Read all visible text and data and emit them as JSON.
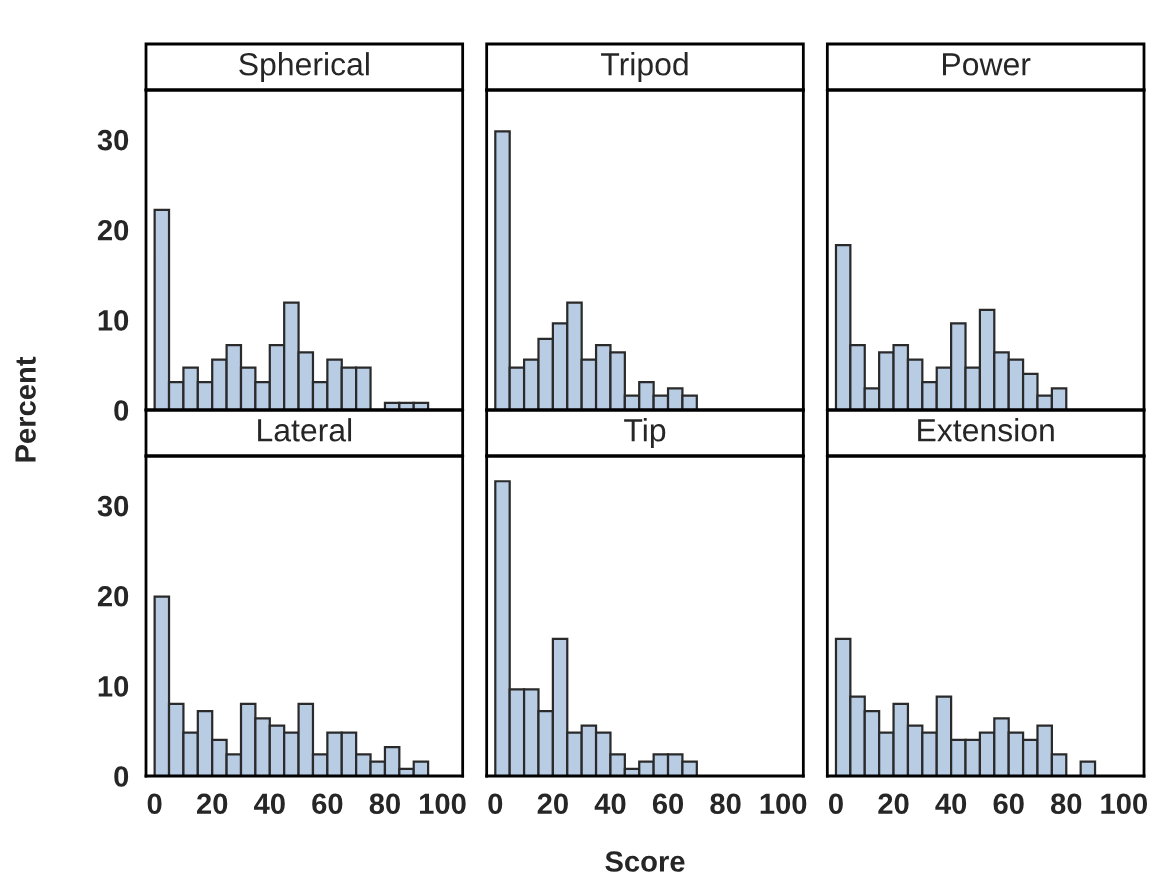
{
  "chart_data": [
    {
      "type": "histogram",
      "title": "Spherical",
      "ylabel": "Percent",
      "color": "#b8cce4",
      "bins": [
        0,
        5,
        10,
        15,
        20,
        25,
        30,
        35,
        40,
        45,
        50,
        55,
        60,
        65,
        70,
        75,
        80,
        85,
        90,
        95,
        100
      ],
      "values": [
        22.2,
        3.1,
        4.7,
        3.1,
        5.6,
        7.2,
        4.7,
        3.1,
        7.2,
        11.9,
        6.4,
        3.1,
        5.6,
        4.7,
        4.7,
        0,
        0.8,
        0.8,
        0.8,
        0
      ],
      "xlim": [
        -3,
        107
      ],
      "ylim": [
        0,
        35.5
      ],
      "xticks": [
        0,
        20,
        40,
        60,
        80,
        100
      ],
      "yticks": [
        0,
        10,
        20,
        30
      ],
      "tick_labels": "y"
    },
    {
      "type": "histogram",
      "title": "Tripod",
      "color": "#b8cce4",
      "bins": [
        0,
        5,
        10,
        15,
        20,
        25,
        30,
        35,
        40,
        45,
        50,
        55,
        60,
        65,
        70,
        75,
        80,
        85,
        90,
        95,
        100
      ],
      "values": [
        30.9,
        4.7,
        5.6,
        7.9,
        9.6,
        11.9,
        5.6,
        7.2,
        6.4,
        1.6,
        3.1,
        1.6,
        2.4,
        1.6,
        0,
        0,
        0,
        0,
        0,
        0
      ],
      "xlim": [
        -3,
        107
      ],
      "ylim": [
        0,
        35.5
      ],
      "xticks": [
        0,
        20,
        40,
        60,
        80,
        100
      ],
      "yticks": [
        0,
        10,
        20,
        30
      ],
      "tick_labels": false
    },
    {
      "type": "histogram",
      "title": "Power",
      "color": "#b8cce4",
      "bins": [
        0,
        5,
        10,
        15,
        20,
        25,
        30,
        35,
        40,
        45,
        50,
        55,
        60,
        65,
        70,
        75,
        80,
        85,
        90,
        95,
        100
      ],
      "values": [
        18.3,
        7.2,
        2.4,
        6.4,
        7.2,
        5.6,
        3.1,
        4.7,
        9.6,
        4.7,
        11.1,
        6.4,
        5.6,
        4.0,
        1.6,
        2.4,
        0,
        0,
        0,
        0
      ],
      "xlim": [
        -3,
        107
      ],
      "ylim": [
        0,
        35.5
      ],
      "xticks": [
        0,
        20,
        40,
        60,
        80,
        100
      ],
      "yticks": [
        0,
        10,
        20,
        30
      ],
      "tick_labels": false
    },
    {
      "type": "histogram",
      "title": "Lateral",
      "color": "#b8cce4",
      "bins": [
        0,
        5,
        10,
        15,
        20,
        25,
        30,
        35,
        40,
        45,
        50,
        55,
        60,
        65,
        70,
        75,
        80,
        85,
        90,
        95,
        100
      ],
      "values": [
        19.9,
        8.0,
        4.8,
        7.2,
        4.0,
        2.4,
        8.0,
        6.4,
        5.6,
        4.8,
        8.0,
        2.4,
        4.8,
        4.8,
        2.4,
        1.6,
        3.2,
        0.8,
        1.6,
        0
      ],
      "xlim": [
        -3,
        107
      ],
      "ylim": [
        0,
        35.5
      ],
      "xticks": [
        0,
        20,
        40,
        60,
        80,
        100
      ],
      "yticks": [
        0,
        10,
        20,
        30
      ]
    },
    {
      "type": "histogram",
      "title": "Tip",
      "xlabel": "Score",
      "color": "#b8cce4",
      "bins": [
        0,
        5,
        10,
        15,
        20,
        25,
        30,
        35,
        40,
        45,
        50,
        55,
        60,
        65,
        70,
        75,
        80,
        85,
        90,
        95,
        100
      ],
      "values": [
        32.7,
        9.6,
        9.6,
        7.2,
        15.2,
        4.8,
        5.6,
        4.8,
        2.4,
        0.8,
        1.6,
        2.4,
        2.4,
        1.6,
        0,
        0,
        0,
        0,
        0,
        0
      ],
      "xlim": [
        -3,
        107
      ],
      "ylim": [
        0,
        35.5
      ],
      "xticks": [
        0,
        20,
        40,
        60,
        80,
        100
      ],
      "yticks": [
        0,
        10,
        20,
        30
      ],
      "tick_labels": "x"
    },
    {
      "type": "histogram",
      "title": "Extension",
      "color": "#b8cce4",
      "bins": [
        0,
        5,
        10,
        15,
        20,
        25,
        30,
        35,
        40,
        45,
        50,
        55,
        60,
        65,
        70,
        75,
        80,
        85,
        90,
        95,
        100
      ],
      "values": [
        15.2,
        8.8,
        7.2,
        4.8,
        8.0,
        5.6,
        4.8,
        8.8,
        4.0,
        4.0,
        4.8,
        6.4,
        4.8,
        4.0,
        5.6,
        2.4,
        0,
        1.6,
        0,
        0
      ],
      "xlim": [
        -3,
        107
      ],
      "ylim": [
        0,
        35.5
      ],
      "xticks": [
        0,
        20,
        40,
        60,
        80,
        100
      ],
      "yticks": [
        0,
        10,
        20,
        30
      ],
      "tick_labels": "x"
    }
  ]
}
